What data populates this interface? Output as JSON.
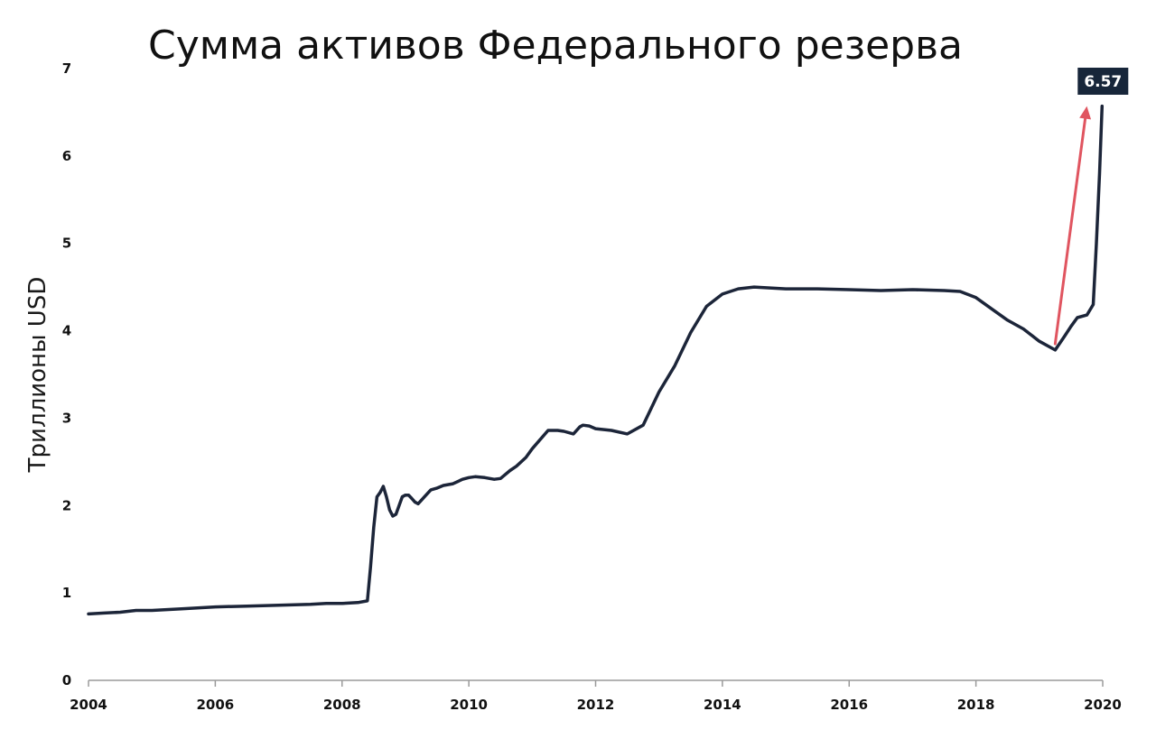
{
  "chart_data": {
    "type": "line",
    "title": "Сумма активов Федерального резерва",
    "xlabel": "",
    "ylabel": "Триллионы USD",
    "xlim": [
      2004,
      2020
    ],
    "ylim": [
      0,
      7
    ],
    "x_ticks": [
      "2004",
      "2006",
      "2008",
      "2010",
      "2012",
      "2014",
      "2016",
      "2018",
      "2020"
    ],
    "y_ticks": [
      "0",
      "1",
      "2",
      "3",
      "4",
      "5",
      "6",
      "7"
    ],
    "grid": false,
    "legend": "none",
    "line_color": "#1c2539",
    "series": [
      {
        "x": [
          2004.0,
          2004.25,
          2004.5,
          2004.75,
          2005.0,
          2005.5,
          2006.0,
          2006.5,
          2007.0,
          2007.5,
          2007.75,
          2008.0,
          2008.25,
          2008.4,
          2008.45,
          2008.5,
          2008.55,
          2008.6,
          2008.65,
          2008.7,
          2008.75,
          2008.8,
          2008.85,
          2008.9,
          2008.95,
          2009.0,
          2009.05,
          2009.1,
          2009.15,
          2009.2,
          2009.3,
          2009.4,
          2009.5,
          2009.6,
          2009.75,
          2009.9,
          2010.0,
          2010.1,
          2010.25,
          2010.4,
          2010.5,
          2010.65,
          2010.75,
          2010.9,
          2011.0,
          2011.25,
          2011.4,
          2011.5,
          2011.65,
          2011.75,
          2011.8,
          2011.9,
          2012.0,
          2012.25,
          2012.5,
          2012.75,
          2013.0,
          2013.25,
          2013.5,
          2013.75,
          2014.0,
          2014.25,
          2014.5,
          2014.75,
          2015.0,
          2015.5,
          2016.0,
          2016.5,
          2017.0,
          2017.5,
          2017.75,
          2018.0,
          2018.25,
          2018.5,
          2018.75,
          2019.0,
          2019.25,
          2019.4,
          2019.5,
          2019.6,
          2019.75,
          2019.85,
          2019.9,
          2019.95,
          2019.99
        ],
        "y": [
          0.76,
          0.77,
          0.78,
          0.8,
          0.8,
          0.82,
          0.84,
          0.85,
          0.86,
          0.87,
          0.88,
          0.88,
          0.89,
          0.91,
          1.3,
          1.75,
          2.1,
          2.15,
          2.22,
          2.1,
          1.95,
          1.88,
          1.9,
          2.0,
          2.1,
          2.12,
          2.12,
          2.08,
          2.04,
          2.02,
          2.1,
          2.18,
          2.2,
          2.23,
          2.25,
          2.3,
          2.32,
          2.33,
          2.32,
          2.3,
          2.31,
          2.4,
          2.45,
          2.55,
          2.65,
          2.86,
          2.86,
          2.85,
          2.82,
          2.9,
          2.92,
          2.91,
          2.88,
          2.86,
          2.82,
          2.92,
          3.3,
          3.6,
          3.98,
          4.28,
          4.42,
          4.48,
          4.5,
          4.49,
          4.48,
          4.48,
          4.47,
          4.46,
          4.47,
          4.46,
          4.45,
          4.38,
          4.25,
          4.12,
          4.02,
          3.88,
          3.78,
          3.94,
          4.05,
          4.15,
          4.18,
          4.3,
          5.0,
          5.8,
          6.57
        ]
      }
    ],
    "annotations": {
      "last_value": "6.57",
      "badge_color": "#17263a",
      "arrow_color": "#e05560",
      "arrow_from": {
        "x": 2019.25,
        "y": 3.85
      },
      "arrow_to": {
        "x": 2019.75,
        "y": 6.57
      }
    }
  }
}
